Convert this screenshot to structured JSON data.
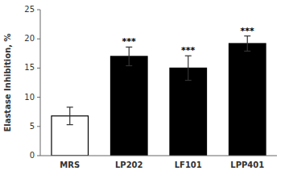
{
  "chart_data": {
    "type": "bar",
    "categories": [
      "MRS",
      "LP202",
      "LF101",
      "LPP401"
    ],
    "values": [
      6.8,
      17.0,
      15.0,
      19.2
    ],
    "errors": [
      1.5,
      1.6,
      2.1,
      1.3
    ],
    "colors": [
      "white",
      "black",
      "black",
      "black"
    ],
    "y_label": "Elastase Inhibition, %",
    "ylim": [
      0,
      25
    ],
    "yticks": [
      0,
      5,
      10,
      15,
      20,
      25
    ],
    "annotations": [
      {
        "category": "LP202",
        "text": "***"
      },
      {
        "category": "LF101",
        "text": "***"
      },
      {
        "category": "LPP401",
        "text": "***"
      }
    ],
    "grid": false
  }
}
